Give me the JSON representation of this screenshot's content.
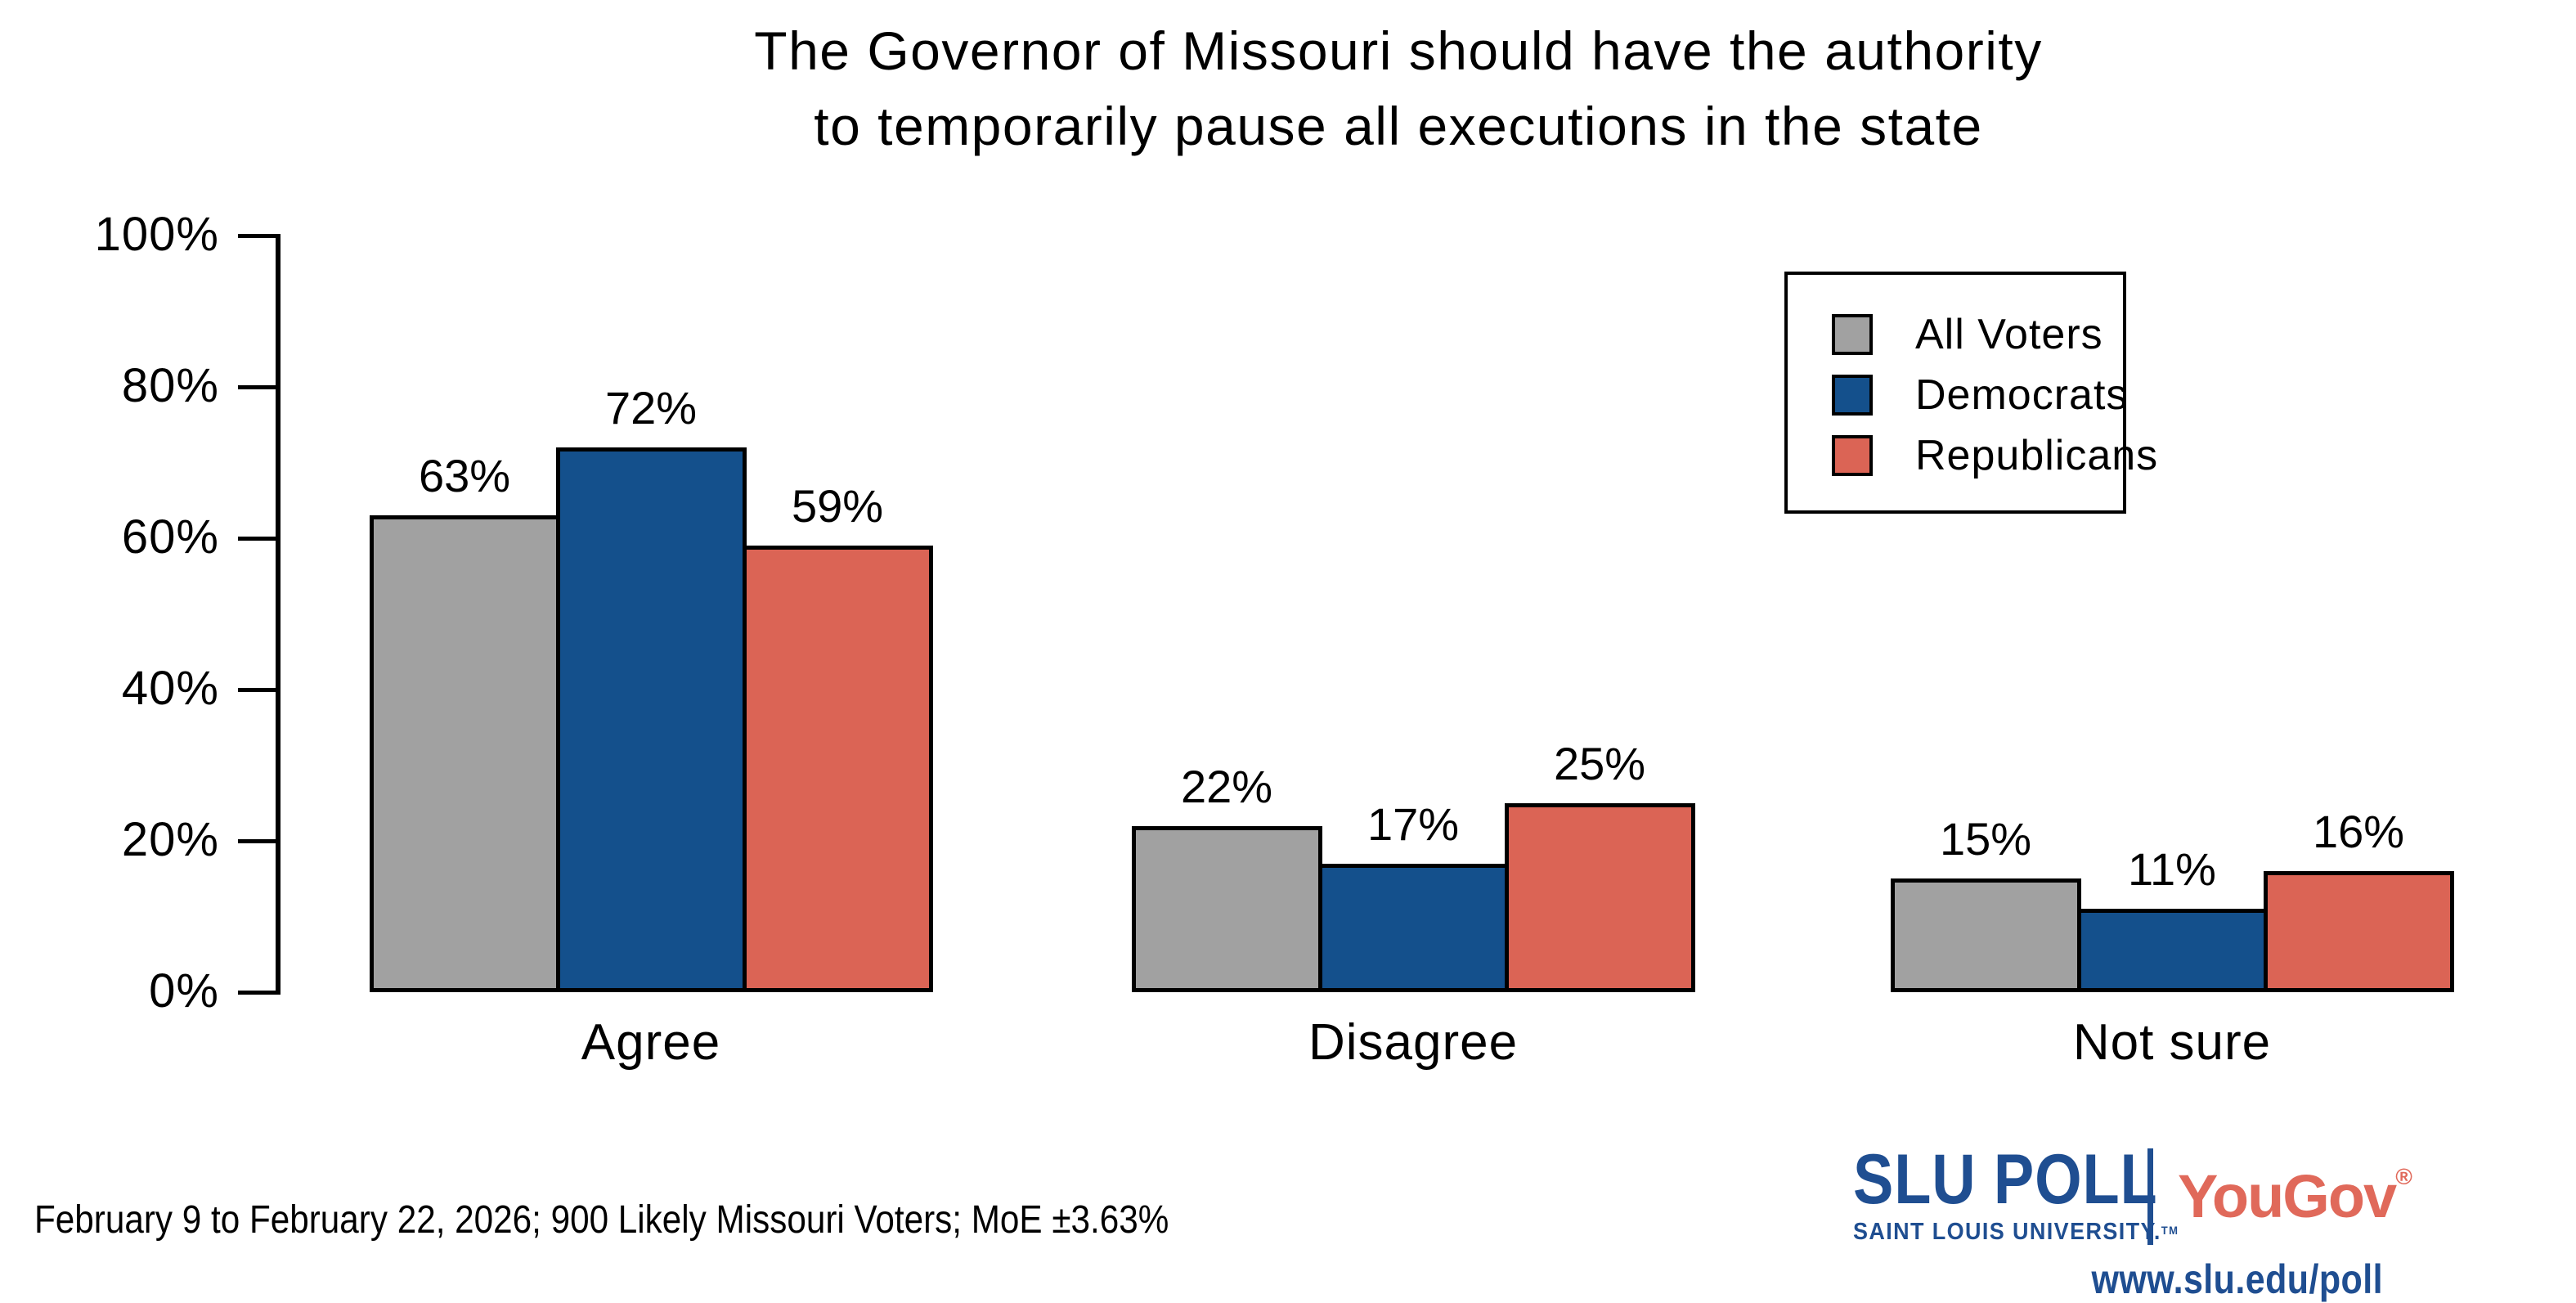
{
  "title": {
    "line1": "The Governor of Missouri should have the authority",
    "line2": "to temporarily pause all executions in the state"
  },
  "chart_data": {
    "type": "bar",
    "title": "The Governor of Missouri should have the authority to temporarily pause all executions in the state",
    "categories": [
      "Agree",
      "Disagree",
      "Not sure"
    ],
    "series": [
      {
        "name": "All Voters",
        "color": "#A1A1A1",
        "values": [
          63,
          22,
          15
        ]
      },
      {
        "name": "Democrats",
        "color": "#14508C",
        "values": [
          72,
          17,
          11
        ]
      },
      {
        "name": "Republicans",
        "color": "#DB6455",
        "values": [
          59,
          25,
          16
        ]
      }
    ],
    "ylabel": "",
    "ylim": [
      0,
      100
    ],
    "y_ticks": [
      "0%",
      "20%",
      "40%",
      "60%",
      "80%",
      "100%"
    ],
    "value_suffix": "%",
    "grid": false,
    "legend_position": "top-right"
  },
  "legend": {
    "items": [
      {
        "label": "All Voters",
        "color": "#A1A1A1"
      },
      {
        "label": "Democrats",
        "color": "#14508C"
      },
      {
        "label": "Republicans",
        "color": "#DB6455"
      }
    ]
  },
  "footer": {
    "note": "February 9 to February 22, 2026; 900 Likely Missouri Voters; MoE ±3.63%"
  },
  "branding": {
    "slu_poll": "SLU POLL",
    "slu_sub": "SAINT LOUIS UNIVERSITY.",
    "slu_tm": "TM",
    "yougov": "YouGov",
    "yougov_reg": "®",
    "url": "www.slu.edu/poll",
    "slu_blue": "#1F4E91",
    "yougov_red": "#E0695A"
  }
}
